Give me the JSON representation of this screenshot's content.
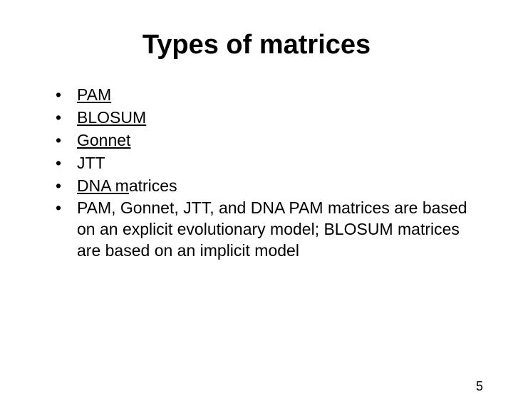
{
  "title": "Types of matrices",
  "bullets": [
    {
      "text": "PAM",
      "underlined": true
    },
    {
      "text": "BLOSUM",
      "underlined": true
    },
    {
      "text": "Gonnet",
      "underlined": true
    },
    {
      "text": "JTT",
      "underlined": false
    },
    {
      "text": "DNA matrices",
      "underlined_prefix": "DNA m",
      "plain_suffix": "atrices"
    },
    {
      "text": "PAM, Gonnet, JTT, and DNA PAM matrices are based on an explicit evolutionary model; BLOSUM matrices are based on an implicit model",
      "underlined": false
    }
  ],
  "page_number": "5",
  "styling": {
    "background_color": "#ffffff",
    "text_color": "#000000",
    "title_fontsize": 38,
    "body_fontsize": 23,
    "font_family": "Comic Sans MS"
  }
}
